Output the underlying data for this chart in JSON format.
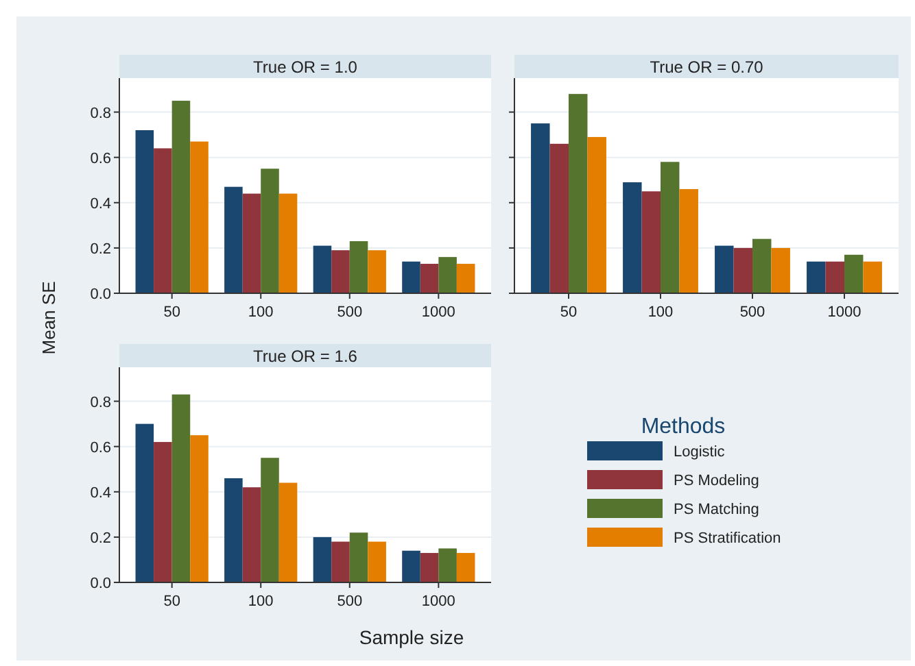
{
  "chart_data": [
    {
      "type": "bar",
      "title": "True OR = 1.0",
      "legend_title": "Methods",
      "legend": "right",
      "categories": [
        "50",
        "100",
        "500",
        "1000"
      ],
      "ylim": [
        0,
        0.95
      ],
      "yticks": [
        {
          "value": 0,
          "label": "0.0"
        },
        0.2,
        0.4,
        0.6,
        0.8
      ],
      "grid": "y",
      "series": [
        {
          "name": "Logistic",
          "color": "#1a476f",
          "values": [
            0.72,
            0.47,
            0.21,
            0.14
          ]
        },
        {
          "name": "PS Modeling",
          "color": "#90353b",
          "values": [
            0.64,
            0.44,
            0.19,
            0.13
          ]
        },
        {
          "name": "PS Matching",
          "color": "#55752f",
          "values": [
            0.85,
            0.55,
            0.23,
            0.16
          ]
        },
        {
          "name": "PS Stratification",
          "color": "#e37e00",
          "values": [
            0.67,
            0.44,
            0.19,
            0.13
          ]
        }
      ]
    },
    {
      "type": "bar",
      "title": "True OR = 0.70",
      "categories": [
        "50",
        "100",
        "500",
        "1000"
      ],
      "ylim": [
        0,
        0.95
      ],
      "yticks": [
        0,
        0.2,
        0.4,
        0.6,
        0.8
      ],
      "grid": "y",
      "tick_labels": "x",
      "series": [
        {
          "color": "#1a476f",
          "values": [
            0.75,
            0.49,
            0.21,
            0.14
          ]
        },
        {
          "color": "#90353b",
          "values": [
            0.66,
            0.45,
            0.2,
            0.14
          ]
        },
        {
          "color": "#55752f",
          "values": [
            0.88,
            0.58,
            0.24,
            0.17
          ]
        },
        {
          "color": "#e37e00",
          "values": [
            0.69,
            0.46,
            0.2,
            0.14
          ]
        }
      ]
    },
    {
      "type": "bar",
      "title": "True OR = 1.6",
      "xlabel": "Sample size",
      "ylabel": "Mean SE",
      "categories": [
        "50",
        "100",
        "500",
        "1000"
      ],
      "ylim": [
        0,
        0.95
      ],
      "yticks": [
        {
          "value": 0,
          "label": "0.0"
        },
        0.2,
        0.4,
        0.6,
        0.8
      ],
      "grid": "y",
      "series": [
        {
          "color": "#1a476f",
          "values": [
            0.7,
            0.46,
            0.2,
            0.14
          ]
        },
        {
          "color": "#90353b",
          "values": [
            0.62,
            0.42,
            0.18,
            0.13
          ]
        },
        {
          "color": "#55752f",
          "values": [
            0.83,
            0.55,
            0.22,
            0.15
          ]
        },
        {
          "color": "#e37e00",
          "values": [
            0.65,
            0.44,
            0.18,
            0.13
          ]
        }
      ]
    }
  ]
}
